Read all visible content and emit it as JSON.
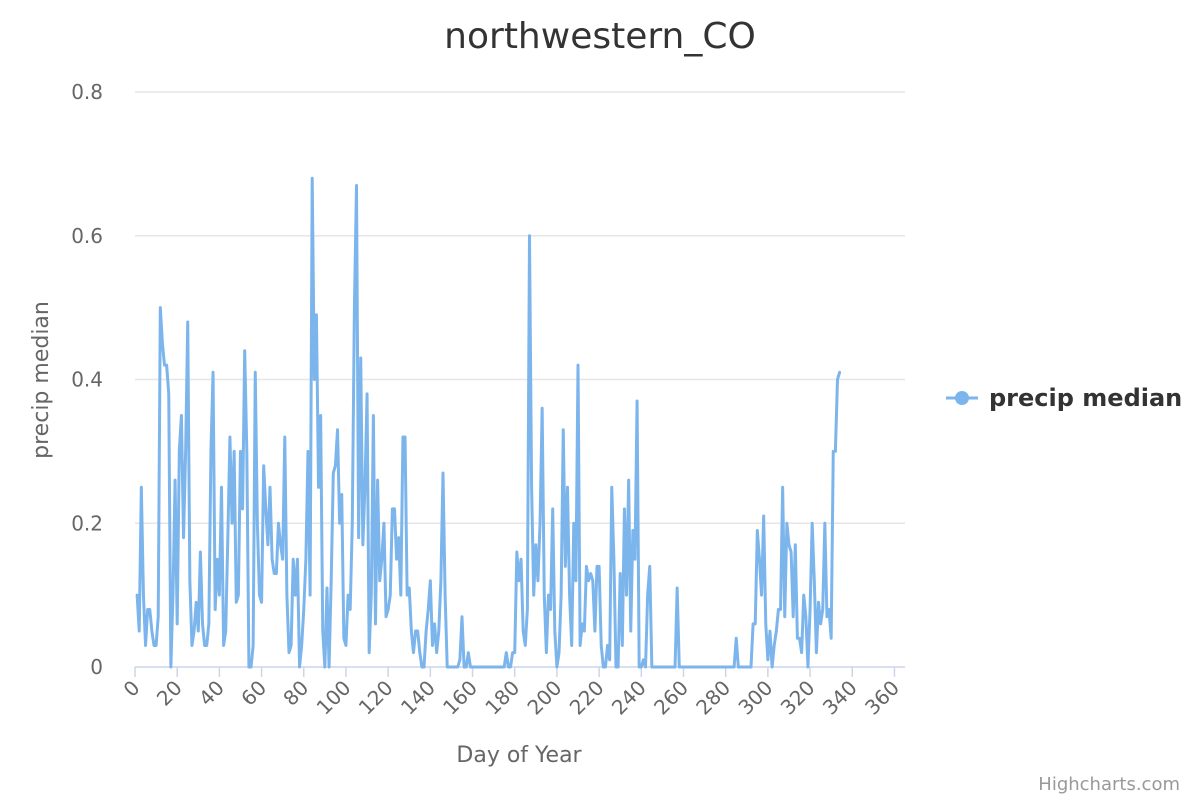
{
  "chart_data": {
    "type": "line",
    "title": "northwestern_CO",
    "xlabel": "Day of Year",
    "ylabel": "precip median",
    "xlim": [
      0,
      365
    ],
    "ylim": [
      0,
      0.8
    ],
    "x_ticks": [
      0,
      20,
      40,
      60,
      80,
      100,
      120,
      140,
      160,
      180,
      200,
      220,
      240,
      260,
      280,
      300,
      320,
      340,
      360
    ],
    "y_ticks": [
      0,
      0.2,
      0.4,
      0.6,
      0.8
    ],
    "y_tick_labels": [
      "0",
      "0.2",
      "0.4",
      "0.6",
      "0.8"
    ],
    "grid": true,
    "legend_position": "right",
    "series": [
      {
        "name": "precip median",
        "color": "#7cb5ec",
        "x_start": 1,
        "x_step": 1,
        "values": [
          0.1,
          0.05,
          0.25,
          0.1,
          0.03,
          0.08,
          0.08,
          0.05,
          0.03,
          0.03,
          0.07,
          0.5,
          0.45,
          0.42,
          0.42,
          0.38,
          0.0,
          0.1,
          0.26,
          0.06,
          0.3,
          0.35,
          0.18,
          0.3,
          0.48,
          0.12,
          0.03,
          0.05,
          0.09,
          0.05,
          0.16,
          0.06,
          0.03,
          0.03,
          0.06,
          0.3,
          0.41,
          0.08,
          0.15,
          0.1,
          0.25,
          0.03,
          0.05,
          0.18,
          0.32,
          0.2,
          0.3,
          0.09,
          0.1,
          0.3,
          0.22,
          0.44,
          0.3,
          0.0,
          0.0,
          0.03,
          0.41,
          0.2,
          0.1,
          0.09,
          0.28,
          0.22,
          0.17,
          0.25,
          0.15,
          0.13,
          0.13,
          0.2,
          0.17,
          0.15,
          0.32,
          0.1,
          0.02,
          0.03,
          0.15,
          0.1,
          0.15,
          0.0,
          0.03,
          0.08,
          0.15,
          0.3,
          0.1,
          0.68,
          0.4,
          0.49,
          0.25,
          0.35,
          0.05,
          0.0,
          0.11,
          0.0,
          0.12,
          0.27,
          0.28,
          0.33,
          0.2,
          0.24,
          0.04,
          0.03,
          0.1,
          0.08,
          0.2,
          0.5,
          0.67,
          0.18,
          0.43,
          0.17,
          0.25,
          0.38,
          0.02,
          0.1,
          0.35,
          0.06,
          0.26,
          0.12,
          0.15,
          0.2,
          0.07,
          0.08,
          0.1,
          0.22,
          0.22,
          0.15,
          0.18,
          0.1,
          0.32,
          0.32,
          0.1,
          0.11,
          0.05,
          0.02,
          0.05,
          0.05,
          0.02,
          0.0,
          0.0,
          0.05,
          0.08,
          0.12,
          0.03,
          0.06,
          0.02,
          0.05,
          0.12,
          0.27,
          0.1,
          0.0,
          0.0,
          0.0,
          0.0,
          0.0,
          0.0,
          0.01,
          0.07,
          0.0,
          0.0,
          0.02,
          0.0,
          0.0,
          0.0,
          0.0,
          0.0,
          0.0,
          0.0,
          0.0,
          0.0,
          0.0,
          0.0,
          0.0,
          0.0,
          0.0,
          0.0,
          0.0,
          0.0,
          0.02,
          0.0,
          0.0,
          0.02,
          0.02,
          0.16,
          0.12,
          0.15,
          0.05,
          0.03,
          0.08,
          0.6,
          0.25,
          0.1,
          0.17,
          0.12,
          0.2,
          0.36,
          0.1,
          0.02,
          0.1,
          0.08,
          0.22,
          0.05,
          0.0,
          0.02,
          0.1,
          0.33,
          0.14,
          0.25,
          0.1,
          0.03,
          0.2,
          0.12,
          0.42,
          0.03,
          0.06,
          0.05,
          0.14,
          0.12,
          0.13,
          0.12,
          0.05,
          0.14,
          0.14,
          0.03,
          0.0,
          0.0,
          0.03,
          0.01,
          0.25,
          0.15,
          0.0,
          0.0,
          0.13,
          0.03,
          0.22,
          0.1,
          0.26,
          0.05,
          0.19,
          0.15,
          0.37,
          0.0,
          0.0,
          0.01,
          0.0,
          0.1,
          0.14,
          0.0,
          0.0,
          0.0,
          0.0,
          0.0,
          0.0,
          0.0,
          0.0,
          0.0,
          0.0,
          0.0,
          0.0,
          0.11,
          0.0,
          0.0,
          0.0,
          0.0,
          0.0,
          0.0,
          0.0,
          0.0,
          0.0,
          0.0,
          0.0,
          0.0,
          0.0,
          0.0,
          0.0,
          0.0,
          0.0,
          0.0,
          0.0,
          0.0,
          0.0,
          0.0,
          0.0,
          0.0,
          0.0,
          0.0,
          0.0,
          0.04,
          0.0,
          0.0,
          0.0,
          0.0,
          0.0,
          0.0,
          0.0,
          0.06,
          0.06,
          0.19,
          0.15,
          0.1,
          0.21,
          0.06,
          0.01,
          0.05,
          0.0,
          0.03,
          0.05,
          0.08,
          0.08,
          0.25,
          0.07,
          0.2,
          0.17,
          0.16,
          0.07,
          0.17,
          0.04,
          0.04,
          0.02,
          0.1,
          0.07,
          0.0,
          0.08,
          0.2,
          0.12,
          0.02,
          0.09,
          0.06,
          0.08,
          0.2,
          0.07,
          0.08,
          0.04,
          0.3,
          0.3,
          0.4,
          0.41
        ]
      }
    ]
  },
  "credits": "Highcharts.com"
}
